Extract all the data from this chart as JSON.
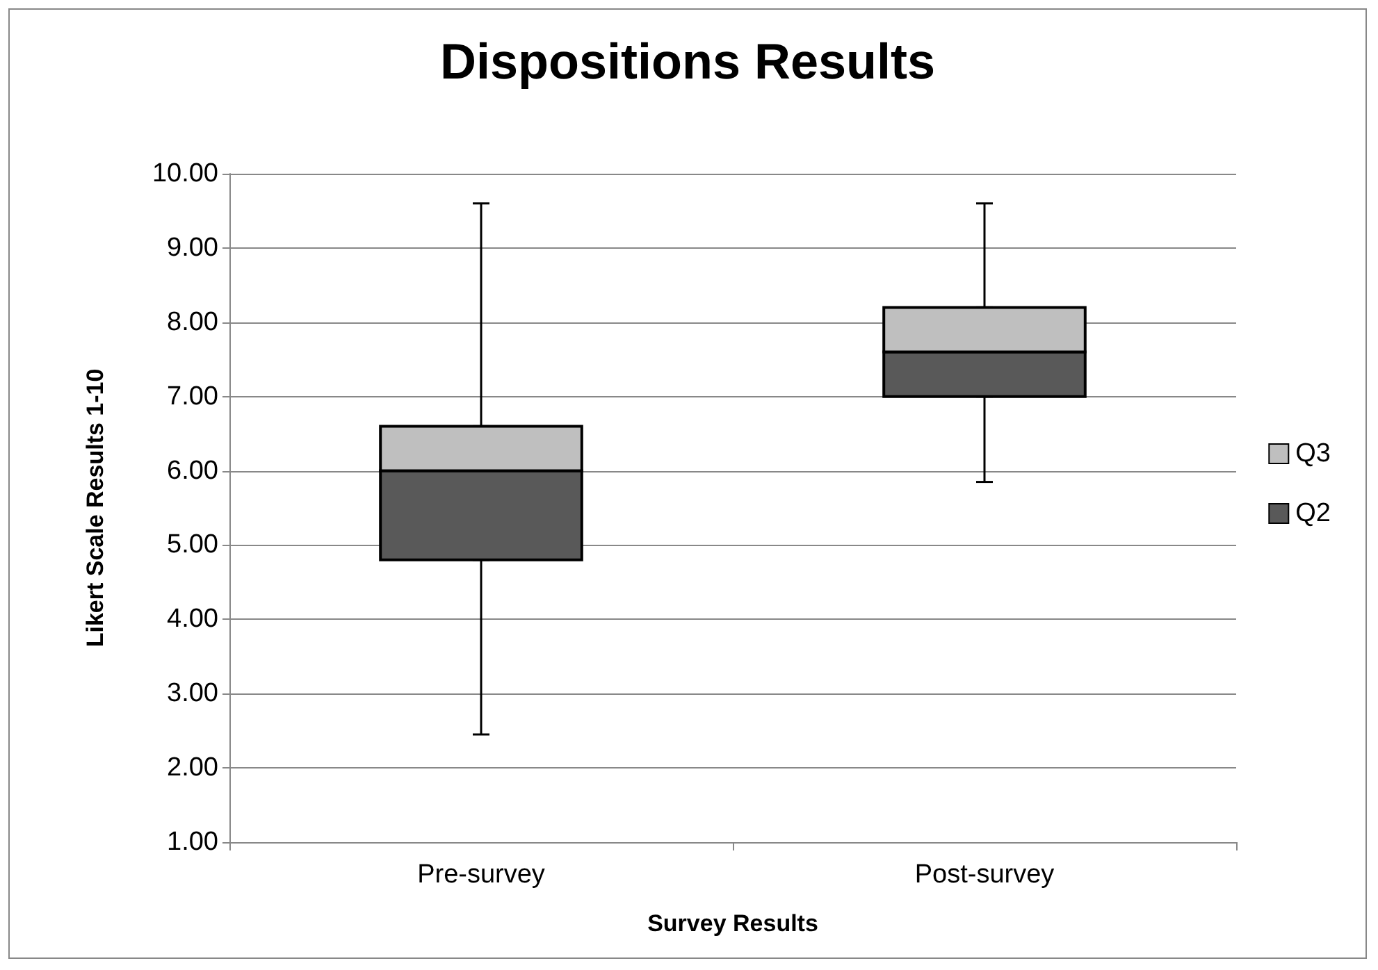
{
  "chart_data": {
    "type": "bar",
    "title": "Dispositions Results",
    "xlabel": "Survey Results",
    "ylabel": "Likert Scale Results 1-10",
    "categories": [
      "Pre-survey",
      "Post-survey"
    ],
    "series": [
      {
        "name": "Q2",
        "color": "#595959",
        "base": [
          4.8,
          7.0
        ],
        "values": [
          1.2,
          0.6
        ],
        "errors": [
          [
            2.45,
            4.8
          ],
          [
            5.85,
            7.0
          ]
        ]
      },
      {
        "name": "Q3",
        "color": "#bfbfbf",
        "base": [
          6.0,
          7.6
        ],
        "values": [
          0.6,
          0.6
        ],
        "errors": [
          [
            6.6,
            9.6
          ],
          [
            8.2,
            9.6
          ]
        ]
      }
    ],
    "ylim": [
      1,
      10
    ],
    "yticks": [
      {
        "value": 1,
        "label": "1.00"
      },
      {
        "value": 2,
        "label": "2.00"
      },
      {
        "value": 3,
        "label": "3.00"
      },
      {
        "value": 4,
        "label": "4.00"
      },
      {
        "value": 5,
        "label": "5.00"
      },
      {
        "value": 6,
        "label": "6.00"
      },
      {
        "value": 7,
        "label": "7.00"
      },
      {
        "value": 8,
        "label": "8.00"
      },
      {
        "value": 9,
        "label": "9.00"
      },
      {
        "value": 10,
        "label": "10.00"
      }
    ],
    "grid": "y",
    "legend": "right"
  }
}
